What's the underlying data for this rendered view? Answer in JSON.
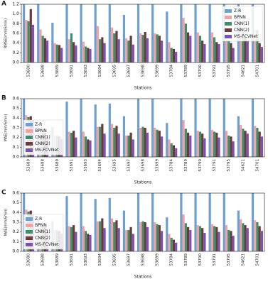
{
  "chart_data": [
    {
      "type": "bar",
      "label": "A",
      "ylabel": "RMSE(mm/6min)",
      "xlabel": "Stations",
      "legend": "upper right",
      "categories": [
        "53680",
        "53688",
        "53689",
        "53691",
        "53693",
        "53694",
        "53695",
        "53697",
        "53698",
        "53699",
        "53784",
        "53789",
        "53790",
        "53791",
        "53795",
        "54621",
        "54701"
      ],
      "ylim": [
        0,
        1.2
      ],
      "yticks": [
        {
          "value": 0,
          "label": "0.0"
        },
        0.2,
        0.4,
        0.6,
        0.8,
        {
          "value": 1,
          "label": "1.0"
        },
        1.2
      ],
      "series": [
        {
          "name": "Z-R",
          "color": "#6f9fd0",
          "values": [
            1.2,
            1.2,
            0.82,
            1.2,
            1.2,
            1.2,
            1.2,
            0.98,
            1.2,
            1.2,
            1.05,
            1.2,
            1.2,
            1.2,
            1.2,
            1.2,
            1.2
          ]
        },
        {
          "name": "BPNN",
          "color": "#f0a3a3",
          "values": [
            0.88,
            0.68,
            0.4,
            0.48,
            0.43,
            0.75,
            0.72,
            0.5,
            0.6,
            0.6,
            0.42,
            0.92,
            0.62,
            0.62,
            0.6,
            0.75,
            0.68
          ]
        },
        {
          "name": "CNN(1)",
          "color": "#3f8f6c",
          "values": [
            0.85,
            0.55,
            0.37,
            0.6,
            0.33,
            0.48,
            0.6,
            0.45,
            0.57,
            0.58,
            0.3,
            0.8,
            0.55,
            0.52,
            0.45,
            0.63,
            0.67
          ]
        },
        {
          "name": "CNN(2)",
          "color": "#6b3b3b",
          "values": [
            1.1,
            0.5,
            0.36,
            0.42,
            0.3,
            0.52,
            0.65,
            0.55,
            0.63,
            0.55,
            0.28,
            0.62,
            0.45,
            0.42,
            0.4,
            0.55,
            0.4
          ]
        },
        {
          "name": "MS-FCVNet",
          "color": "#7b52b3",
          "values": [
            0.78,
            0.45,
            0.3,
            0.35,
            0.28,
            0.4,
            0.48,
            0.37,
            0.5,
            0.45,
            0.22,
            0.55,
            0.38,
            0.38,
            0.3,
            0.45,
            0.32
          ]
        }
      ]
    },
    {
      "type": "bar",
      "label": "B",
      "ylabel": "MAE(mm/6min)",
      "xlabel": "Stations",
      "legend": "lower left",
      "categories": [
        "53680",
        "53688",
        "53689",
        "53691",
        "53693",
        "53694",
        "53695",
        "53697",
        "53698",
        "53699",
        "53784",
        "53789",
        "53790",
        "53791",
        "53795",
        "54621",
        "54701"
      ],
      "ylim": [
        0,
        0.6
      ],
      "yticks": [
        {
          "value": 0,
          "label": "0.0"
        },
        0.1,
        0.2,
        0.3,
        0.4,
        0.5,
        0.6
      ],
      "series": [
        {
          "name": "Z-R",
          "color": "#6f9fd0",
          "values": [
            0.6,
            0.33,
            0.31,
            0.57,
            0.6,
            0.54,
            0.55,
            0.42,
            0.6,
            0.6,
            0.35,
            0.6,
            0.6,
            0.6,
            0.6,
            0.42,
            0.6
          ]
        },
        {
          "name": "BPNN",
          "color": "#f0a3a3",
          "values": [
            0.43,
            0.29,
            0.22,
            0.26,
            0.26,
            0.31,
            0.34,
            0.22,
            0.3,
            0.3,
            0.18,
            0.38,
            0.27,
            0.28,
            0.27,
            0.33,
            0.32
          ]
        },
        {
          "name": "CNN(1)",
          "color": "#3f8f6c",
          "values": [
            0.41,
            0.26,
            0.22,
            0.25,
            0.21,
            0.31,
            0.3,
            0.22,
            0.31,
            0.28,
            0.14,
            0.29,
            0.26,
            0.26,
            0.22,
            0.29,
            0.3
          ]
        },
        {
          "name": "CNN(2)",
          "color": "#6b3b3b",
          "values": [
            0.42,
            0.25,
            0.21,
            0.27,
            0.18,
            0.34,
            0.32,
            0.25,
            0.3,
            0.27,
            0.12,
            0.25,
            0.24,
            0.25,
            0.21,
            0.27,
            0.26
          ]
        },
        {
          "name": "MS-FCVNet",
          "color": "#7b52b3",
          "values": [
            0.38,
            0.22,
            0.18,
            0.2,
            0.17,
            0.24,
            0.24,
            0.18,
            0.25,
            0.21,
            0.09,
            0.22,
            0.19,
            0.2,
            0.16,
            0.24,
            0.21
          ]
        }
      ]
    },
    {
      "type": "bar",
      "label": "C",
      "ylabel": "MAE(mm/6min)",
      "xlabel": "Stations",
      "legend": "lower left",
      "categories": [
        "53680",
        "53688",
        "53689",
        "53691",
        "53693",
        "53694",
        "53695",
        "53697",
        "53698",
        "53699",
        "53784",
        "53789",
        "53790",
        "53791",
        "53795",
        "54621",
        "54701"
      ],
      "ylim": [
        0,
        0.6
      ],
      "yticks": [
        {
          "value": 0,
          "label": "0.0"
        },
        0.1,
        0.2,
        0.3,
        0.4,
        0.5,
        0.6
      ],
      "series": [
        {
          "name": "Z-R",
          "color": "#6f9fd0",
          "values": [
            0.6,
            0.33,
            0.31,
            0.57,
            0.6,
            0.54,
            0.55,
            0.42,
            0.6,
            0.6,
            0.35,
            0.6,
            0.6,
            0.6,
            0.6,
            0.42,
            0.6
          ]
        },
        {
          "name": "BPNN",
          "color": "#f0a3a3",
          "values": [
            0.43,
            0.29,
            0.22,
            0.26,
            0.26,
            0.31,
            0.34,
            0.22,
            0.3,
            0.3,
            0.18,
            0.38,
            0.27,
            0.28,
            0.27,
            0.33,
            0.32
          ]
        },
        {
          "name": "CNN(1)",
          "color": "#3f8f6c",
          "values": [
            0.41,
            0.26,
            0.22,
            0.25,
            0.21,
            0.31,
            0.3,
            0.22,
            0.31,
            0.28,
            0.14,
            0.29,
            0.26,
            0.26,
            0.22,
            0.29,
            0.3
          ]
        },
        {
          "name": "CNN(2)",
          "color": "#6b3b3b",
          "values": [
            0.42,
            0.25,
            0.21,
            0.27,
            0.18,
            0.34,
            0.32,
            0.25,
            0.3,
            0.27,
            0.12,
            0.25,
            0.24,
            0.25,
            0.21,
            0.27,
            0.26
          ]
        },
        {
          "name": "MS-FCVNet",
          "color": "#7b52b3",
          "values": [
            0.38,
            0.22,
            0.18,
            0.2,
            0.17,
            0.24,
            0.24,
            0.18,
            0.25,
            0.21,
            0.09,
            0.22,
            0.19,
            0.2,
            0.16,
            0.24,
            0.21
          ]
        }
      ]
    }
  ]
}
